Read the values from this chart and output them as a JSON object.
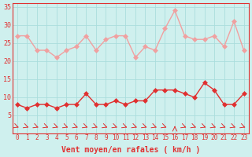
{
  "x": [
    0,
    1,
    2,
    3,
    4,
    5,
    6,
    7,
    8,
    9,
    10,
    11,
    12,
    13,
    14,
    15,
    16,
    17,
    18,
    19,
    20,
    21,
    22,
    23
  ],
  "wind_avg": [
    8,
    7,
    8,
    8,
    7,
    8,
    8,
    11,
    8,
    8,
    9,
    8,
    9,
    9,
    12,
    12,
    12,
    11,
    10,
    14,
    12,
    8,
    8,
    11
  ],
  "wind_gust": [
    27,
    27,
    23,
    23,
    21,
    23,
    24,
    27,
    23,
    26,
    27,
    27,
    21,
    24,
    23,
    29,
    34,
    27,
    26,
    26,
    27,
    24,
    31,
    23
  ],
  "xlabel": "Vent moyen/en rafales ( km/h )",
  "xlim": [
    -0.5,
    23.5
  ],
  "ylim": [
    0,
    36
  ],
  "yticks": [
    5,
    10,
    15,
    20,
    25,
    30,
    35
  ],
  "xticks": [
    0,
    1,
    2,
    3,
    4,
    5,
    6,
    7,
    8,
    9,
    10,
    11,
    12,
    13,
    14,
    15,
    16,
    17,
    18,
    19,
    20,
    21,
    22,
    23
  ],
  "bg_color": "#cff0ee",
  "grid_color": "#aadddd",
  "avg_color": "#e03030",
  "gust_color": "#f0a0a0",
  "line_width": 1.0,
  "marker_size": 3
}
